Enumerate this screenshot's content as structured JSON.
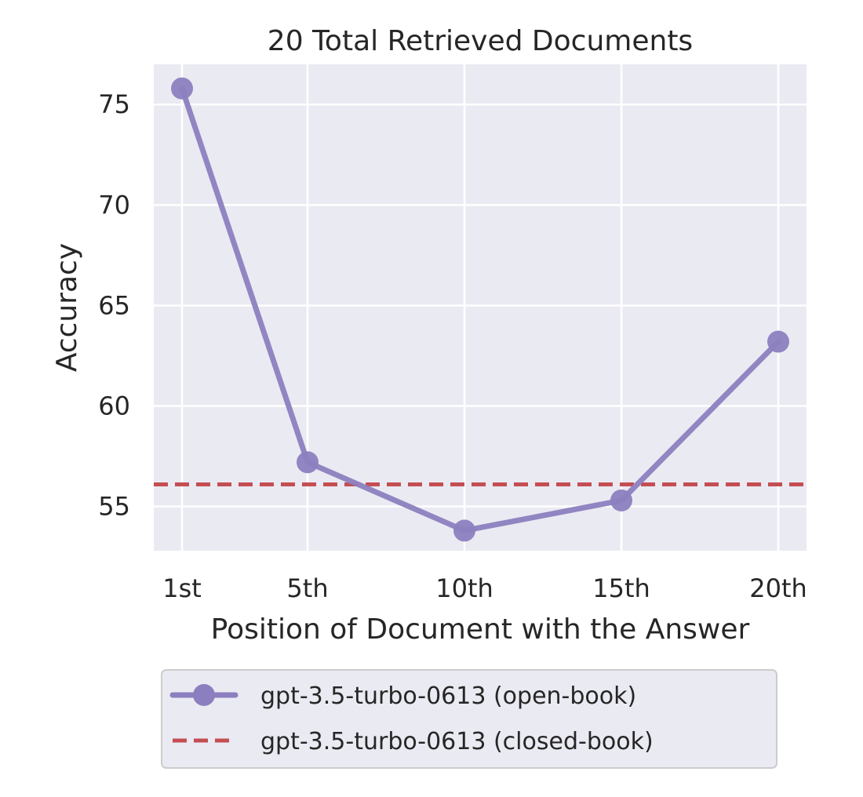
{
  "chart_data": {
    "type": "line",
    "title": "20 Total Retrieved Documents",
    "xlabel": "Position of Document with the Answer",
    "ylabel": "Accuracy",
    "x": [
      1,
      5,
      10,
      15,
      20
    ],
    "x_tick_labels": [
      "1st",
      "5th",
      "10th",
      "15th",
      "20th"
    ],
    "ylim": [
      52.8,
      77.0
    ],
    "y_ticks": [
      55,
      60,
      65,
      70,
      75
    ],
    "series": [
      {
        "name": "gpt-3.5-turbo-0613 (open-book)",
        "style": "line-with-markers",
        "color": "#8c7fbf",
        "values": [
          75.8,
          57.2,
          53.8,
          55.3,
          63.2
        ]
      },
      {
        "name": "gpt-3.5-turbo-0613 (closed-book)",
        "style": "dashed-horizontal",
        "color": "#c44e52",
        "value": 56.1
      }
    ],
    "grid": true,
    "background": "#eaeaf2",
    "legend_position": "bottom-outside"
  }
}
